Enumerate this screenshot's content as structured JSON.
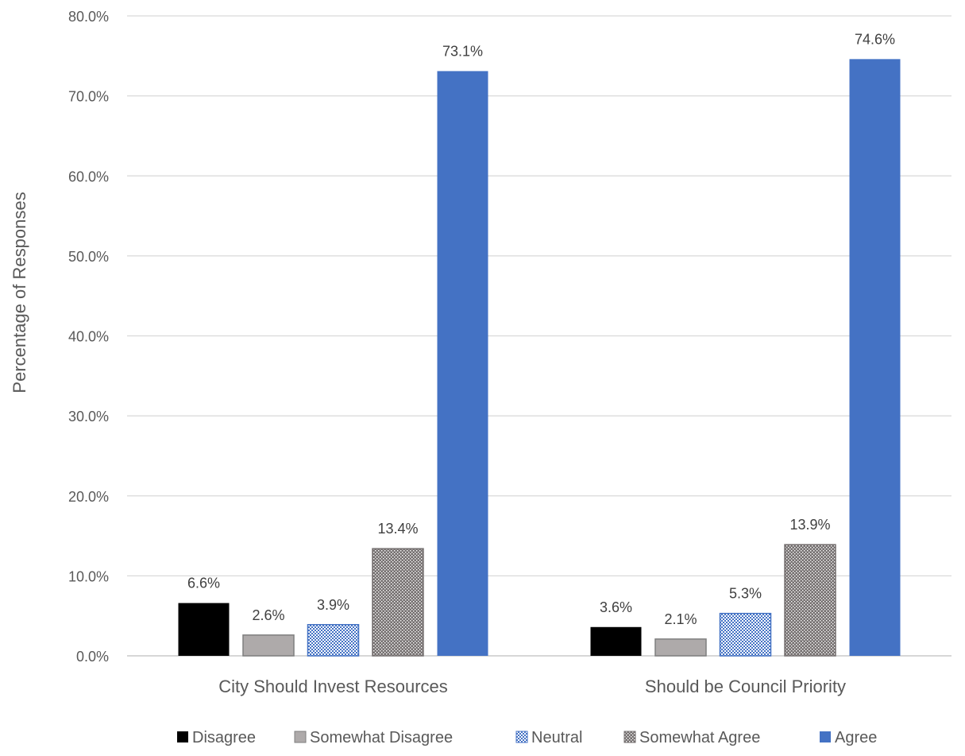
{
  "chart_data": {
    "type": "bar",
    "title": "",
    "xlabel": "",
    "ylabel": "Percentage of Responses",
    "ylim": [
      0,
      80
    ],
    "yticks": [
      0,
      10,
      20,
      30,
      40,
      50,
      60,
      70,
      80
    ],
    "ytick_labels": [
      "0.0%",
      "10.0%",
      "20.0%",
      "30.0%",
      "40.0%",
      "50.0%",
      "60.0%",
      "70.0%",
      "80.0%"
    ],
    "grid": true,
    "legend_position": "bottom",
    "categories": [
      "City Should Invest Resources",
      "Should be Council Priority"
    ],
    "series": [
      {
        "name": "Disagree",
        "values": [
          6.6,
          3.6
        ],
        "labels": [
          "6.6%",
          "3.6%"
        ],
        "color": "#000000",
        "pattern": "solid"
      },
      {
        "name": "Somewhat Disagree",
        "values": [
          2.6,
          2.1
        ],
        "labels": [
          "2.6%",
          "2.1%"
        ],
        "color": "#aeaaaa",
        "pattern": "solid"
      },
      {
        "name": "Neutral",
        "values": [
          3.9,
          5.3
        ],
        "labels": [
          "3.9%",
          "5.3%"
        ],
        "color": "#4472c4",
        "pattern": "checker"
      },
      {
        "name": "Somewhat Agree",
        "values": [
          13.4,
          13.9
        ],
        "labels": [
          "13.4%",
          "13.9%"
        ],
        "color": "#767171",
        "pattern": "dots"
      },
      {
        "name": "Agree",
        "values": [
          73.1,
          74.6
        ],
        "labels": [
          "73.1%",
          "74.6%"
        ],
        "color": "#4472c4",
        "pattern": "solid"
      }
    ]
  }
}
